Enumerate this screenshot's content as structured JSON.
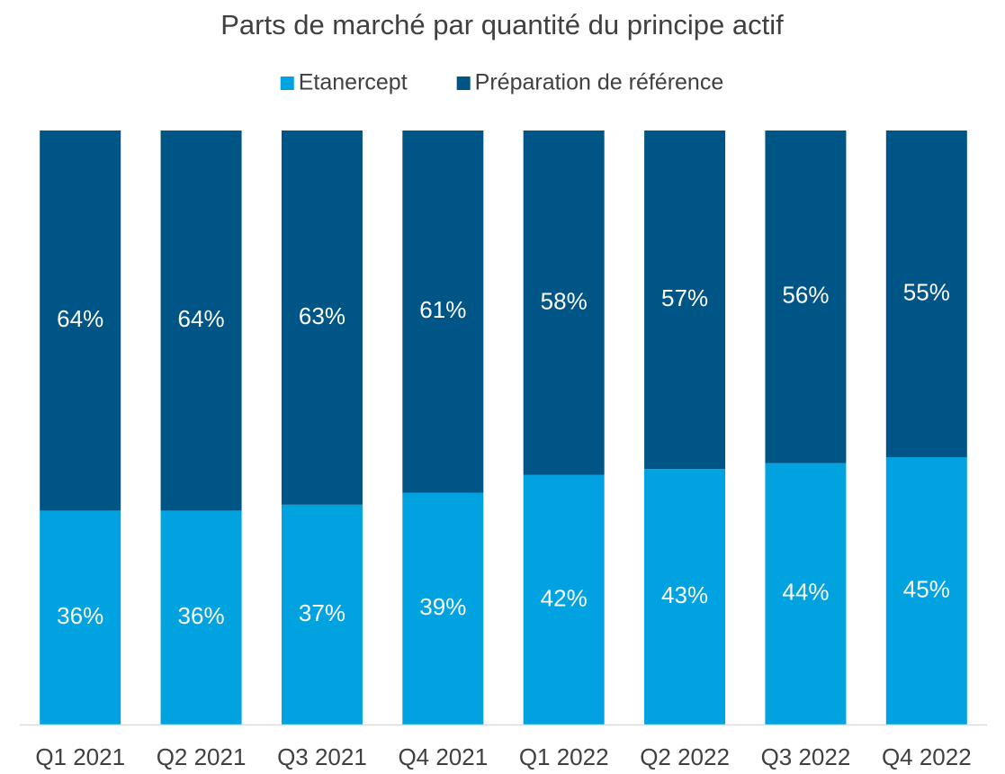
{
  "chart_data": {
    "type": "stacked_bar",
    "title": "Parts de marché par quantité du principe actif",
    "categories": [
      "Q1 2021",
      "Q2 2021",
      "Q3 2021",
      "Q4 2021",
      "Q1 2022",
      "Q2 2022",
      "Q3 2022",
      "Q4 2022"
    ],
    "series": [
      {
        "name": "Etanercept",
        "color": "#00a3e0",
        "values": [
          36,
          36,
          37,
          39,
          42,
          43,
          44,
          45
        ],
        "value_labels": [
          "36%",
          "36%",
          "37%",
          "39%",
          "42%",
          "43%",
          "44%",
          "45%"
        ]
      },
      {
        "name": "Préparation de référence",
        "color": "#005587",
        "values": [
          64,
          64,
          63,
          61,
          58,
          57,
          56,
          55
        ],
        "value_labels": [
          "64%",
          "64%",
          "63%",
          "61%",
          "58%",
          "57%",
          "56%",
          "55%"
        ]
      }
    ],
    "legend": "top"
  }
}
